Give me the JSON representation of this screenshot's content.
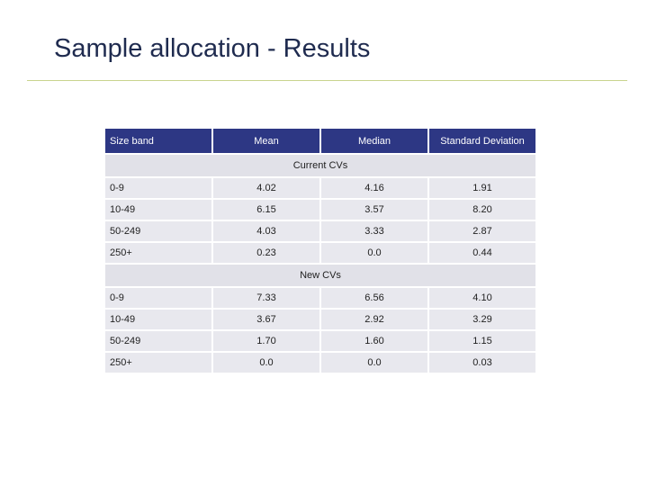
{
  "header": {
    "title": "Sample allocation - Results"
  },
  "table": {
    "columns": [
      "Size band",
      "Mean",
      "Median",
      "Standard Deviation"
    ],
    "sections": [
      {
        "label": "Current CVs",
        "rows": [
          [
            "0-9",
            "4.02",
            "4.16",
            "1.91"
          ],
          [
            "10-49",
            "6.15",
            "3.57",
            "8.20"
          ],
          [
            "50-249",
            "4.03",
            "3.33",
            "2.87"
          ],
          [
            "250+",
            "0.23",
            "0.0",
            "0.44"
          ]
        ]
      },
      {
        "label": "New CVs",
        "rows": [
          [
            "0-9",
            "7.33",
            "6.56",
            "4.10"
          ],
          [
            "10-49",
            "3.67",
            "2.92",
            "3.29"
          ],
          [
            "50-249",
            "1.70",
            "1.60",
            "1.15"
          ],
          [
            "250+",
            "0.0",
            "0.0",
            "0.03"
          ]
        ]
      }
    ]
  }
}
